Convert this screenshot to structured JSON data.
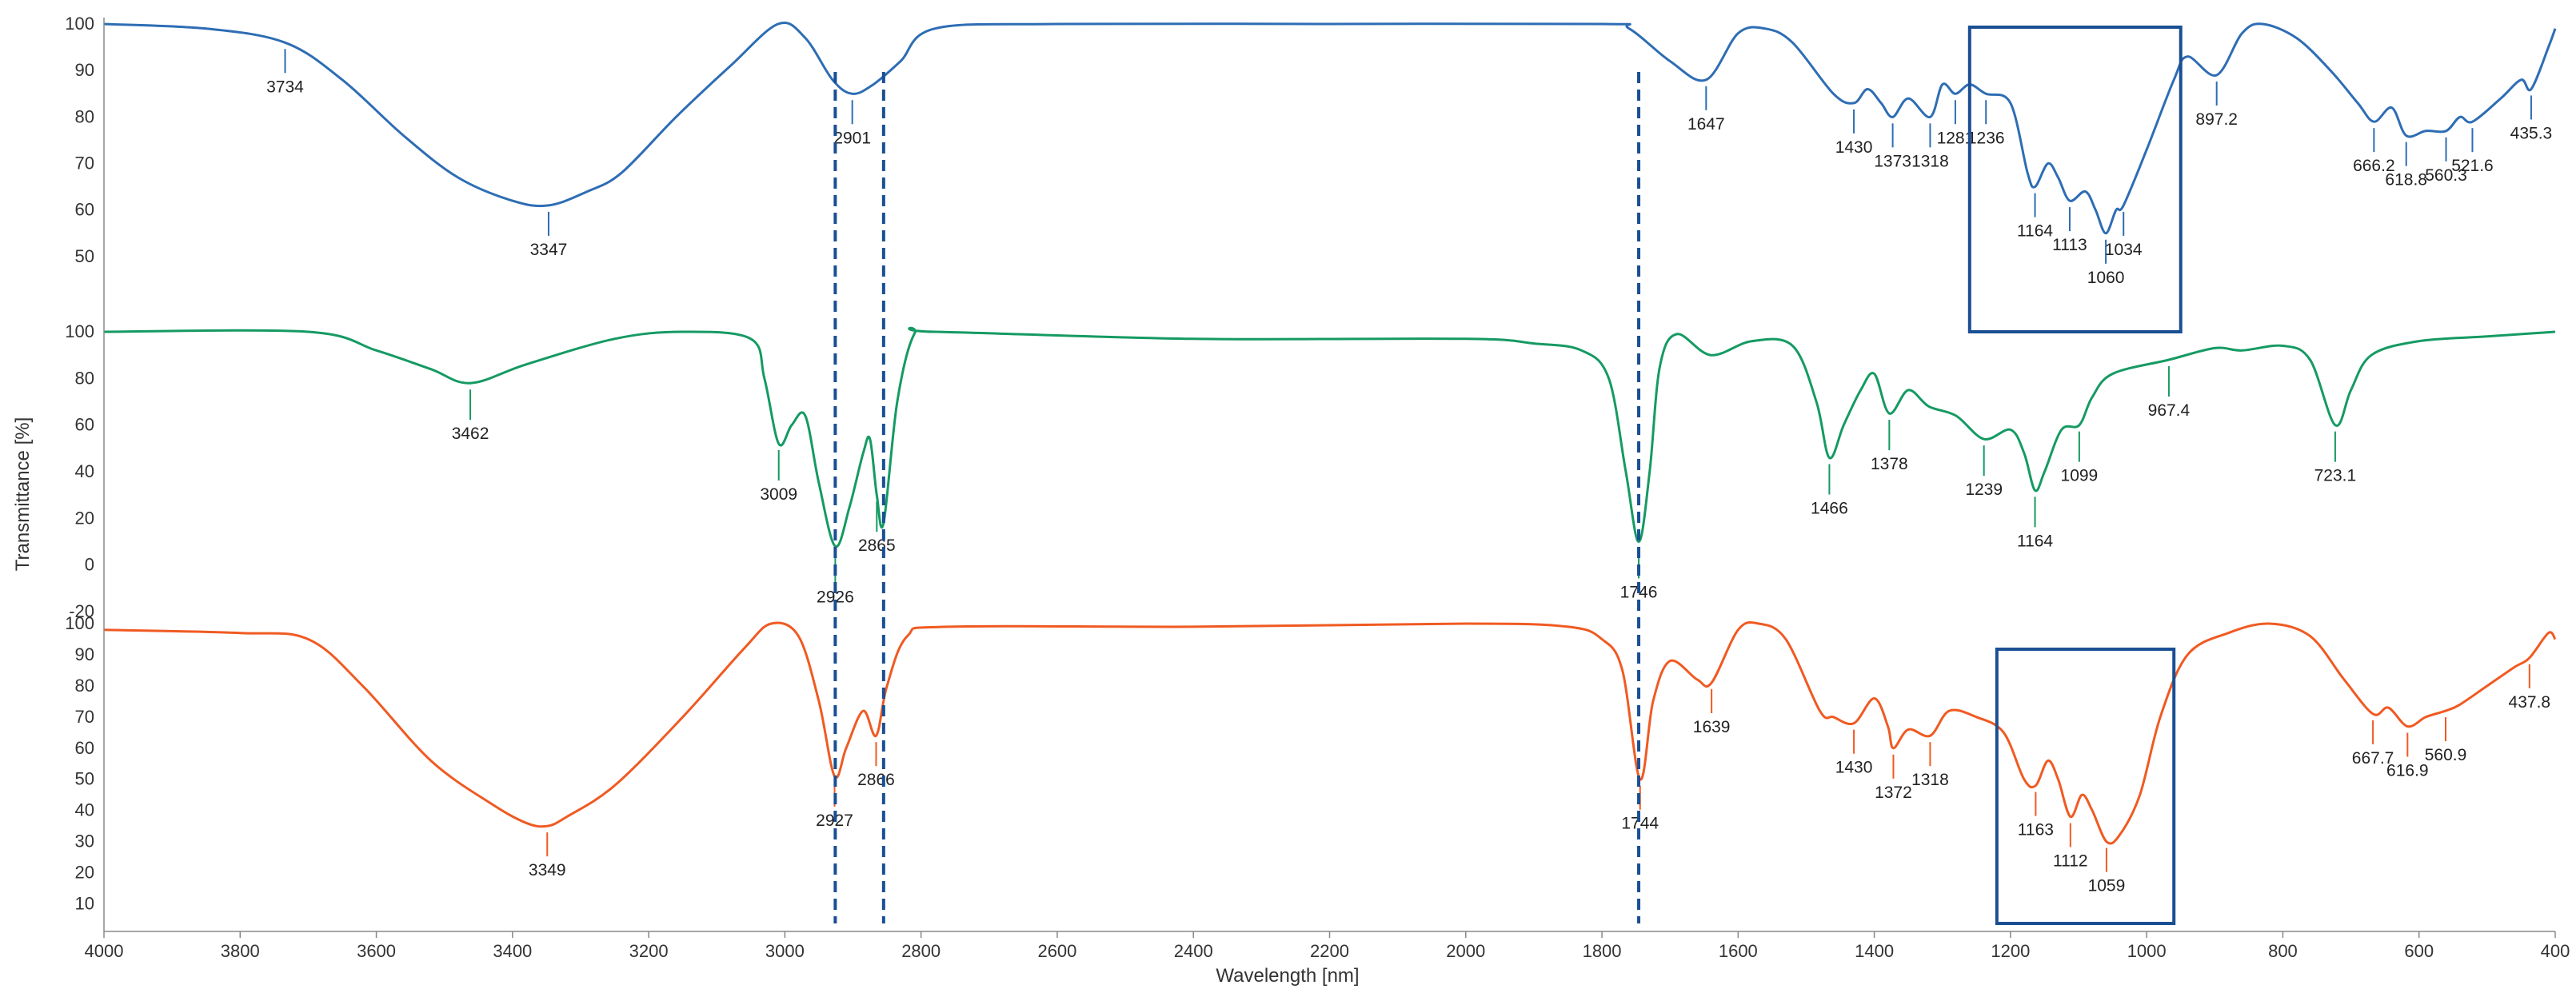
{
  "chart_data": {
    "type": "line",
    "title": "",
    "xlabel": "Wavelength [nm]",
    "ylabel": "Transmittance [%]",
    "xlim": [
      4000,
      400
    ],
    "x_ticks": [
      "4000",
      "3800",
      "3600",
      "3400",
      "3200",
      "3000",
      "2800",
      "2600",
      "2400",
      "2200",
      "2000",
      "1800",
      "1600",
      "1400",
      "1200",
      "1000",
      "800",
      "600",
      "400"
    ],
    "grid": false,
    "legend": "none",
    "series": [
      {
        "color": "#2e6db4",
        "ylim": [
          45,
          100
        ],
        "y_ticks": [
          "100",
          "90",
          "80",
          "70",
          "60",
          "50"
        ],
        "points": [
          [
            4000,
            100
          ],
          [
            3850,
            99
          ],
          [
            3734,
            96
          ],
          [
            3650,
            88
          ],
          [
            3560,
            76
          ],
          [
            3480,
            67
          ],
          [
            3400,
            62
          ],
          [
            3347,
            61
          ],
          [
            3290,
            64
          ],
          [
            3240,
            68
          ],
          [
            3160,
            80
          ],
          [
            3080,
            91
          ],
          [
            3010,
            100
          ],
          [
            2970,
            97
          ],
          [
            2930,
            88
          ],
          [
            2901,
            85
          ],
          [
            2870,
            87
          ],
          [
            2830,
            92
          ],
          [
            2780,
            99
          ],
          [
            2600,
            100
          ],
          [
            2200,
            100
          ],
          [
            1800,
            100
          ],
          [
            1760,
            99
          ],
          [
            1700,
            92
          ],
          [
            1647,
            88
          ],
          [
            1600,
            98
          ],
          [
            1560,
            99
          ],
          [
            1520,
            96
          ],
          [
            1460,
            85
          ],
          [
            1430,
            83
          ],
          [
            1410,
            86
          ],
          [
            1390,
            83
          ],
          [
            1373,
            80
          ],
          [
            1350,
            84
          ],
          [
            1318,
            80
          ],
          [
            1300,
            87
          ],
          [
            1281,
            85
          ],
          [
            1260,
            87
          ],
          [
            1236,
            85
          ],
          [
            1200,
            83
          ],
          [
            1175,
            68
          ],
          [
            1164,
            65
          ],
          [
            1145,
            70
          ],
          [
            1130,
            67
          ],
          [
            1113,
            62
          ],
          [
            1090,
            64
          ],
          [
            1075,
            60
          ],
          [
            1060,
            55
          ],
          [
            1045,
            60
          ],
          [
            1034,
            61
          ],
          [
            1000,
            73
          ],
          [
            960,
            88
          ],
          [
            940,
            93
          ],
          [
            897.2,
            89
          ],
          [
            860,
            98
          ],
          [
            830,
            100
          ],
          [
            780,
            97
          ],
          [
            730,
            90
          ],
          [
            690,
            83
          ],
          [
            666.2,
            79
          ],
          [
            640,
            82
          ],
          [
            618.8,
            76
          ],
          [
            590,
            77
          ],
          [
            560.3,
            77
          ],
          [
            540,
            80
          ],
          [
            521.6,
            79
          ],
          [
            480,
            84
          ],
          [
            450,
            88
          ],
          [
            435.3,
            86
          ],
          [
            410,
            95
          ],
          [
            400,
            99
          ]
        ],
        "peaks": [
          "3734",
          "3347",
          "2901",
          "1647",
          "1430",
          "1373",
          "1318",
          "1281",
          "1236",
          "1164",
          "1113",
          "1060",
          "1034",
          "897.2",
          "666.2",
          "618.8",
          "560.3",
          "521.6",
          "435.3"
        ]
      },
      {
        "color": "#159a63",
        "ylim": [
          -20,
          100
        ],
        "y_ticks": [
          "100",
          "80",
          "60",
          "40",
          "20",
          "0",
          "-20"
        ],
        "points": [
          [
            4000,
            100
          ],
          [
            3700,
            100
          ],
          [
            3600,
            92
          ],
          [
            3520,
            84
          ],
          [
            3462,
            78
          ],
          [
            3380,
            86
          ],
          [
            3250,
            97
          ],
          [
            3150,
            100
          ],
          [
            3050,
            97
          ],
          [
            3030,
            80
          ],
          [
            3009,
            52
          ],
          [
            2990,
            60
          ],
          [
            2970,
            64
          ],
          [
            2950,
            35
          ],
          [
            2926,
            8
          ],
          [
            2905,
            25
          ],
          [
            2885,
            48
          ],
          [
            2875,
            54
          ],
          [
            2865,
            30
          ],
          [
            2855,
            18
          ],
          [
            2835,
            70
          ],
          [
            2810,
            99
          ],
          [
            2780,
            100
          ],
          [
            2400,
            97
          ],
          [
            2000,
            97
          ],
          [
            1900,
            95
          ],
          [
            1830,
            92
          ],
          [
            1790,
            80
          ],
          [
            1765,
            40
          ],
          [
            1746,
            10
          ],
          [
            1730,
            40
          ],
          [
            1715,
            85
          ],
          [
            1690,
            99
          ],
          [
            1640,
            90
          ],
          [
            1580,
            96
          ],
          [
            1520,
            94
          ],
          [
            1485,
            70
          ],
          [
            1466,
            46
          ],
          [
            1445,
            60
          ],
          [
            1420,
            75
          ],
          [
            1400,
            82
          ],
          [
            1378,
            65
          ],
          [
            1350,
            75
          ],
          [
            1320,
            68
          ],
          [
            1280,
            64
          ],
          [
            1239,
            54
          ],
          [
            1200,
            58
          ],
          [
            1180,
            48
          ],
          [
            1164,
            32
          ],
          [
            1150,
            40
          ],
          [
            1125,
            58
          ],
          [
            1099,
            60
          ],
          [
            1080,
            72
          ],
          [
            1050,
            82
          ],
          [
            967.4,
            88
          ],
          [
            900,
            93
          ],
          [
            860,
            92
          ],
          [
            800,
            94
          ],
          [
            760,
            88
          ],
          [
            723.1,
            60
          ],
          [
            700,
            75
          ],
          [
            670,
            90
          ],
          [
            600,
            96
          ],
          [
            500,
            98
          ],
          [
            400,
            100
          ]
        ],
        "peaks": [
          "3462",
          "3009",
          "2926",
          "2865",
          "1746",
          "1466",
          "1378",
          "1239",
          "1164",
          "1099",
          "967.4",
          "723.1"
        ]
      },
      {
        "color": "#f05a22",
        "ylim": [
          5,
          100
        ],
        "y_ticks": [
          "100",
          "90",
          "80",
          "70",
          "60",
          "50",
          "40",
          "30",
          "20",
          "10"
        ],
        "points": [
          [
            4000,
            98
          ],
          [
            3800,
            97
          ],
          [
            3700,
            95
          ],
          [
            3620,
            80
          ],
          [
            3520,
            56
          ],
          [
            3430,
            42
          ],
          [
            3380,
            36
          ],
          [
            3349,
            35
          ],
          [
            3320,
            38
          ],
          [
            3250,
            48
          ],
          [
            3150,
            70
          ],
          [
            3060,
            92
          ],
          [
            3020,
            100
          ],
          [
            2980,
            96
          ],
          [
            2950,
            75
          ],
          [
            2927,
            51
          ],
          [
            2910,
            60
          ],
          [
            2885,
            72
          ],
          [
            2866,
            64
          ],
          [
            2850,
            80
          ],
          [
            2820,
            96
          ],
          [
            2760,
            99
          ],
          [
            2400,
            99
          ],
          [
            2000,
            100
          ],
          [
            1850,
            99
          ],
          [
            1800,
            95
          ],
          [
            1770,
            85
          ],
          [
            1744,
            50
          ],
          [
            1725,
            75
          ],
          [
            1700,
            88
          ],
          [
            1660,
            82
          ],
          [
            1639,
            81
          ],
          [
            1600,
            98
          ],
          [
            1570,
            100
          ],
          [
            1530,
            95
          ],
          [
            1480,
            72
          ],
          [
            1460,
            70
          ],
          [
            1430,
            68
          ],
          [
            1400,
            76
          ],
          [
            1380,
            67
          ],
          [
            1372,
            60
          ],
          [
            1350,
            66
          ],
          [
            1318,
            64
          ],
          [
            1290,
            72
          ],
          [
            1250,
            70
          ],
          [
            1210,
            65
          ],
          [
            1180,
            50
          ],
          [
            1163,
            48
          ],
          [
            1145,
            56
          ],
          [
            1130,
            50
          ],
          [
            1112,
            38
          ],
          [
            1095,
            45
          ],
          [
            1080,
            40
          ],
          [
            1059,
            30
          ],
          [
            1040,
            32
          ],
          [
            1010,
            45
          ],
          [
            980,
            70
          ],
          [
            940,
            90
          ],
          [
            880,
            97
          ],
          [
            820,
            100
          ],
          [
            760,
            96
          ],
          [
            710,
            82
          ],
          [
            667.7,
            71
          ],
          [
            645,
            73
          ],
          [
            616.9,
            67
          ],
          [
            590,
            70
          ],
          [
            560.9,
            72
          ],
          [
            540,
            74
          ],
          [
            500,
            80
          ],
          [
            460,
            86
          ],
          [
            437.8,
            89
          ],
          [
            410,
            97
          ],
          [
            400,
            95
          ]
        ],
        "peaks": [
          "3349",
          "2927",
          "2866",
          "1744",
          "1639",
          "1430",
          "1372",
          "1318",
          "1163",
          "1112",
          "1059",
          "667.7",
          "616.9",
          "560.9",
          "437.8"
        ]
      }
    ],
    "annotations": {
      "dashed_lines_x": [
        2926,
        2855,
        1746
      ],
      "boxes": [
        {
          "x_range": [
            1260,
            950
          ],
          "series": 0
        },
        {
          "x_range": [
            1220,
            960
          ],
          "series": 2
        }
      ]
    }
  }
}
